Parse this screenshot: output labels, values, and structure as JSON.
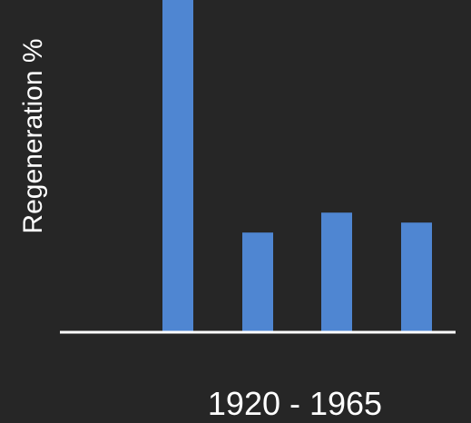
{
  "chart_data": {
    "type": "bar",
    "categories": [
      "",
      "",
      "",
      ""
    ],
    "values": [
      100,
      30,
      36,
      33
    ],
    "title": "",
    "xlabel": "1920 - 1965",
    "ylabel": "Regeneration  %",
    "ylim": [
      0,
      100
    ],
    "grid": false,
    "bar_color": "#4F86D2",
    "axis_color": "#FFFFFF",
    "background_color": "#262626"
  }
}
